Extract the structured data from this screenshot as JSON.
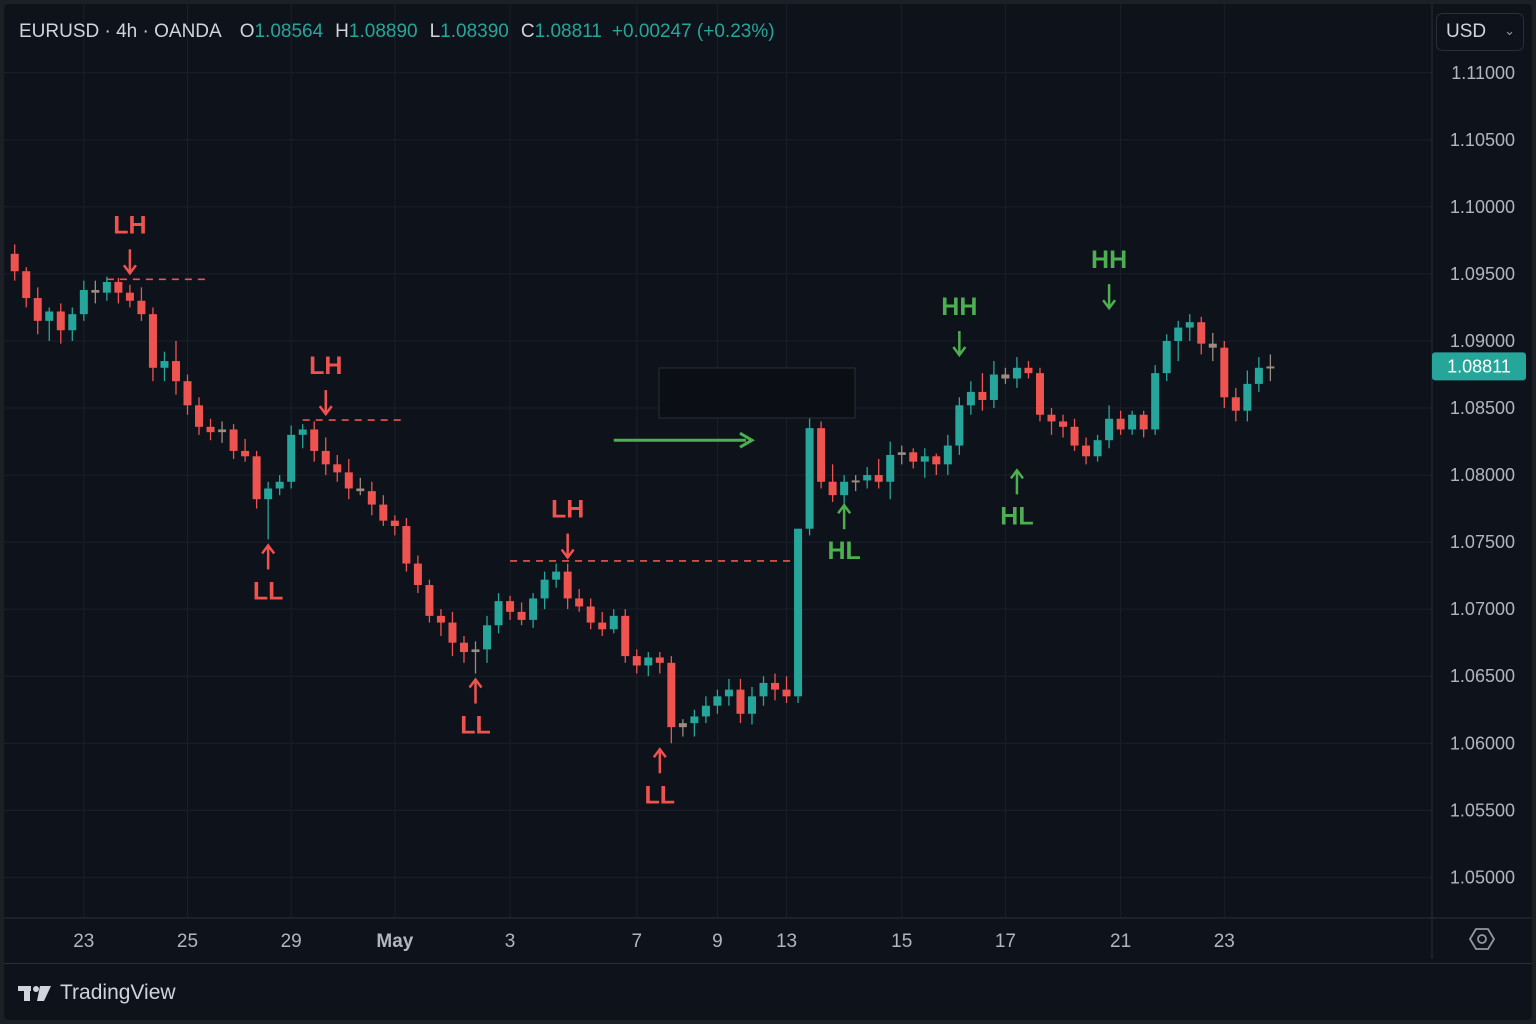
{
  "header": {
    "symbol": "EURUSD · 4h · OANDA",
    "open_label": "O",
    "open": "1.08564",
    "high_label": "H",
    "high": "1.08890",
    "low_label": "L",
    "low": "1.08390",
    "close_label": "C",
    "close": "1.08811",
    "change": "+0.00247 (+0.23%)"
  },
  "currency_select": {
    "value": "USD",
    "icon": "chevron-down-icon"
  },
  "footer": {
    "brand": "TradingView",
    "logo_icon": "tradingview-logo-icon",
    "settings_icon": "settings-icon"
  },
  "colors": {
    "background": "#0e121a",
    "grid": "#1a1f2b",
    "up": "#26a69a",
    "down": "#ef5350",
    "doji": "#9a8c80",
    "annotation_bearish": "#ef5350",
    "annotation_bullish": "#4caf50",
    "price_tag": "#26a69a",
    "text": "#b2b5be"
  },
  "chart_data": {
    "type": "candlestick",
    "title": "",
    "xlabel": "",
    "ylabel": "",
    "ylim": [
      1.046,
      1.1114
    ],
    "y_ticks": [
      "1.11000",
      "1.10500",
      "1.10000",
      "1.09500",
      "1.09000",
      "1.08500",
      "1.08000",
      "1.07500",
      "1.07000",
      "1.06500",
      "1.06000",
      "1.05500",
      "1.05000"
    ],
    "x_ticks": [
      {
        "label": "23",
        "bar": 6
      },
      {
        "label": "25",
        "bar": 15
      },
      {
        "label": "29",
        "bar": 24
      },
      {
        "label": "May",
        "bar": 33
      },
      {
        "label": "3",
        "bar": 43
      },
      {
        "label": "7",
        "bar": 54
      },
      {
        "label": "9",
        "bar": 61
      },
      {
        "label": "13",
        "bar": 67
      },
      {
        "label": "15",
        "bar": 77
      },
      {
        "label": "17",
        "bar": 86
      },
      {
        "label": "21",
        "bar": 96
      },
      {
        "label": "23",
        "bar": 105
      }
    ],
    "grid": true,
    "last_price": "1.08811",
    "candles": [
      [
        1.0965,
        1.0972,
        1.0945,
        1.0952
      ],
      [
        1.0952,
        1.0955,
        1.0925,
        1.0932
      ],
      [
        1.0932,
        1.094,
        1.0905,
        1.0915
      ],
      [
        1.0915,
        1.0925,
        1.09,
        1.0922
      ],
      [
        1.0922,
        1.0928,
        1.0898,
        1.0908
      ],
      [
        1.0908,
        1.0925,
        1.09,
        1.092
      ],
      [
        1.092,
        1.0945,
        1.0915,
        1.0938
      ],
      [
        1.0938,
        1.0945,
        1.0928,
        1.0936
      ],
      [
        1.0936,
        1.0948,
        1.093,
        1.0944
      ],
      [
        1.0944,
        1.0947,
        1.0928,
        1.0936
      ],
      [
        1.0936,
        1.0942,
        1.0925,
        1.093
      ],
      [
        1.093,
        1.094,
        1.0915,
        1.092
      ],
      [
        1.092,
        1.0925,
        1.087,
        1.088
      ],
      [
        1.088,
        1.0892,
        1.087,
        1.0885
      ],
      [
        1.0885,
        1.09,
        1.086,
        1.087
      ],
      [
        1.087,
        1.0875,
        1.0845,
        1.0852
      ],
      [
        1.0852,
        1.0858,
        1.083,
        1.0836
      ],
      [
        1.0836,
        1.0842,
        1.0826,
        1.0832
      ],
      [
        1.0832,
        1.084,
        1.0824,
        1.0834
      ],
      [
        1.0834,
        1.0838,
        1.0812,
        1.0818
      ],
      [
        1.0818,
        1.0827,
        1.081,
        1.0814
      ],
      [
        1.0814,
        1.0818,
        1.0775,
        1.0782
      ],
      [
        1.0782,
        1.0795,
        1.0752,
        1.079
      ],
      [
        1.079,
        1.08,
        1.0785,
        1.0795
      ],
      [
        1.0795,
        1.0837,
        1.079,
        1.083
      ],
      [
        1.083,
        1.0838,
        1.082,
        1.0834
      ],
      [
        1.0834,
        1.084,
        1.081,
        1.0818
      ],
      [
        1.0818,
        1.0828,
        1.08,
        1.0808
      ],
      [
        1.0808,
        1.0815,
        1.0795,
        1.0802
      ],
      [
        1.0802,
        1.0812,
        1.0782,
        1.079
      ],
      [
        1.079,
        1.0798,
        1.0785,
        1.0788
      ],
      [
        1.0788,
        1.0795,
        1.077,
        1.0778
      ],
      [
        1.0778,
        1.0785,
        1.0762,
        1.0766
      ],
      [
        1.0766,
        1.077,
        1.0755,
        1.0762
      ],
      [
        1.0762,
        1.0768,
        1.0728,
        1.0734
      ],
      [
        1.0734,
        1.074,
        1.0712,
        1.0718
      ],
      [
        1.0718,
        1.0722,
        1.069,
        1.0695
      ],
      [
        1.0695,
        1.07,
        1.068,
        1.069
      ],
      [
        1.069,
        1.0698,
        1.0665,
        1.0675
      ],
      [
        1.0675,
        1.068,
        1.066,
        1.0668
      ],
      [
        1.0668,
        1.0676,
        1.0652,
        1.067
      ],
      [
        1.067,
        1.0695,
        1.066,
        1.0688
      ],
      [
        1.0688,
        1.0712,
        1.0682,
        1.0706
      ],
      [
        1.0706,
        1.071,
        1.0692,
        1.0698
      ],
      [
        1.0698,
        1.0705,
        1.0688,
        1.0692
      ],
      [
        1.0692,
        1.0712,
        1.0686,
        1.0708
      ],
      [
        1.0708,
        1.0728,
        1.07,
        1.0722
      ],
      [
        1.0722,
        1.0734,
        1.0716,
        1.0728
      ],
      [
        1.0728,
        1.0734,
        1.07,
        1.0708
      ],
      [
        1.0708,
        1.0715,
        1.0698,
        1.0702
      ],
      [
        1.0702,
        1.0708,
        1.0685,
        1.069
      ],
      [
        1.069,
        1.0698,
        1.068,
        1.0685
      ],
      [
        1.0685,
        1.07,
        1.0682,
        1.0695
      ],
      [
        1.0695,
        1.07,
        1.066,
        1.0665
      ],
      [
        1.0665,
        1.067,
        1.0652,
        1.0658
      ],
      [
        1.0658,
        1.0668,
        1.065,
        1.0664
      ],
      [
        1.0664,
        1.0668,
        1.0652,
        1.066
      ],
      [
        1.066,
        1.0665,
        1.06,
        1.0612
      ],
      [
        1.0612,
        1.0618,
        1.0605,
        1.0615
      ],
      [
        1.0615,
        1.0625,
        1.0605,
        1.062
      ],
      [
        1.062,
        1.0635,
        1.0615,
        1.0628
      ],
      [
        1.0628,
        1.064,
        1.0622,
        1.0635
      ],
      [
        1.0635,
        1.0648,
        1.0628,
        1.064
      ],
      [
        1.064,
        1.0648,
        1.0615,
        1.0622
      ],
      [
        1.0622,
        1.0642,
        1.0614,
        1.0635
      ],
      [
        1.0635,
        1.065,
        1.0628,
        1.0645
      ],
      [
        1.0645,
        1.0652,
        1.0632,
        1.064
      ],
      [
        1.064,
        1.065,
        1.063,
        1.0635
      ],
      [
        1.0635,
        1.076,
        1.063,
        1.076
      ],
      [
        1.076,
        1.0852,
        1.0755,
        1.0835
      ],
      [
        1.0835,
        1.084,
        1.079,
        1.0795
      ],
      [
        1.0795,
        1.0808,
        1.078,
        1.0785
      ],
      [
        1.0785,
        1.08,
        1.0775,
        1.0795
      ],
      [
        1.0795,
        1.08,
        1.0788,
        1.0796
      ],
      [
        1.0796,
        1.0806,
        1.079,
        1.08
      ],
      [
        1.08,
        1.0812,
        1.079,
        1.0795
      ],
      [
        1.0795,
        1.0825,
        1.0782,
        1.0815
      ],
      [
        1.0815,
        1.0822,
        1.0808,
        1.0817
      ],
      [
        1.0817,
        1.082,
        1.0805,
        1.081
      ],
      [
        1.081,
        1.082,
        1.0798,
        1.0814
      ],
      [
        1.0814,
        1.0816,
        1.08,
        1.0808
      ],
      [
        1.0808,
        1.083,
        1.08,
        1.0822
      ],
      [
        1.0822,
        1.0858,
        1.0815,
        1.0852
      ],
      [
        1.0852,
        1.087,
        1.0845,
        1.0862
      ],
      [
        1.0862,
        1.0876,
        1.0848,
        1.0856
      ],
      [
        1.0856,
        1.0885,
        1.085,
        1.0875
      ],
      [
        1.0875,
        1.088,
        1.0868,
        1.0872
      ],
      [
        1.0872,
        1.0888,
        1.0865,
        1.088
      ],
      [
        1.088,
        1.0885,
        1.0872,
        1.0876
      ],
      [
        1.0876,
        1.088,
        1.084,
        1.0845
      ],
      [
        1.0845,
        1.085,
        1.083,
        1.084
      ],
      [
        1.084,
        1.0845,
        1.0828,
        1.0836
      ],
      [
        1.0836,
        1.0842,
        1.0818,
        1.0822
      ],
      [
        1.0822,
        1.0828,
        1.0808,
        1.0814
      ],
      [
        1.0814,
        1.083,
        1.081,
        1.0826
      ],
      [
        1.0826,
        1.0852,
        1.082,
        1.0842
      ],
      [
        1.0842,
        1.0848,
        1.083,
        1.0834
      ],
      [
        1.0834,
        1.0848,
        1.083,
        1.0845
      ],
      [
        1.0845,
        1.0848,
        1.0828,
        1.0834
      ],
      [
        1.0834,
        1.0882,
        1.083,
        1.0876
      ],
      [
        1.0876,
        1.0905,
        1.087,
        1.09
      ],
      [
        1.09,
        1.0915,
        1.0885,
        1.091
      ],
      [
        1.091,
        1.092,
        1.09,
        1.0914
      ],
      [
        1.0914,
        1.0918,
        1.089,
        1.0898
      ],
      [
        1.0898,
        1.0906,
        1.0885,
        1.0895
      ],
      [
        1.0895,
        1.09,
        1.085,
        1.0858
      ],
      [
        1.0858,
        1.0865,
        1.084,
        1.0848
      ],
      [
        1.0848,
        1.0878,
        1.084,
        1.0868
      ],
      [
        1.0868,
        1.0888,
        1.0862,
        1.088
      ],
      [
        1.088,
        1.089,
        1.087,
        1.0881
      ]
    ],
    "horizontal_lines": [
      {
        "price": 1.0946,
        "from_bar": 8,
        "to_bar": 17,
        "color": "#ef5350"
      },
      {
        "price": 1.0841,
        "from_bar": 25,
        "to_bar": 34,
        "color": "#ef5350"
      },
      {
        "price": 1.0736,
        "from_bar": 43,
        "to_bar": 68,
        "color": "#ef5350"
      }
    ],
    "annotations": [
      {
        "label": "LH",
        "bar": 10,
        "dir": "down",
        "price": 1.0949,
        "kind": "bearish"
      },
      {
        "label": "LL",
        "bar": 22,
        "dir": "up",
        "price": 1.0749,
        "kind": "bearish"
      },
      {
        "label": "LH",
        "bar": 27,
        "dir": "down",
        "price": 1.0844,
        "kind": "bearish"
      },
      {
        "label": "LL",
        "bar": 40,
        "dir": "up",
        "price": 1.0649,
        "kind": "bearish"
      },
      {
        "label": "LH",
        "bar": 48,
        "dir": "down",
        "price": 1.0737,
        "kind": "bearish"
      },
      {
        "label": "LL",
        "bar": 56,
        "dir": "up",
        "price": 1.0597,
        "kind": "bearish"
      },
      {
        "label": "HL",
        "bar": 72,
        "dir": "up",
        "price": 1.0779,
        "kind": "bullish"
      },
      {
        "label": "HH",
        "bar": 82,
        "dir": "down",
        "price": 1.0888,
        "kind": "bullish"
      },
      {
        "label": "HL",
        "bar": 87,
        "dir": "up",
        "price": 1.0805,
        "kind": "bullish"
      },
      {
        "label": "HH",
        "bar": 95,
        "dir": "down",
        "price": 1.0923,
        "kind": "bullish"
      }
    ],
    "trend_arrow": {
      "from_bar": 52,
      "to_bar": 64,
      "price": 1.0826,
      "color": "#4caf50"
    }
  }
}
